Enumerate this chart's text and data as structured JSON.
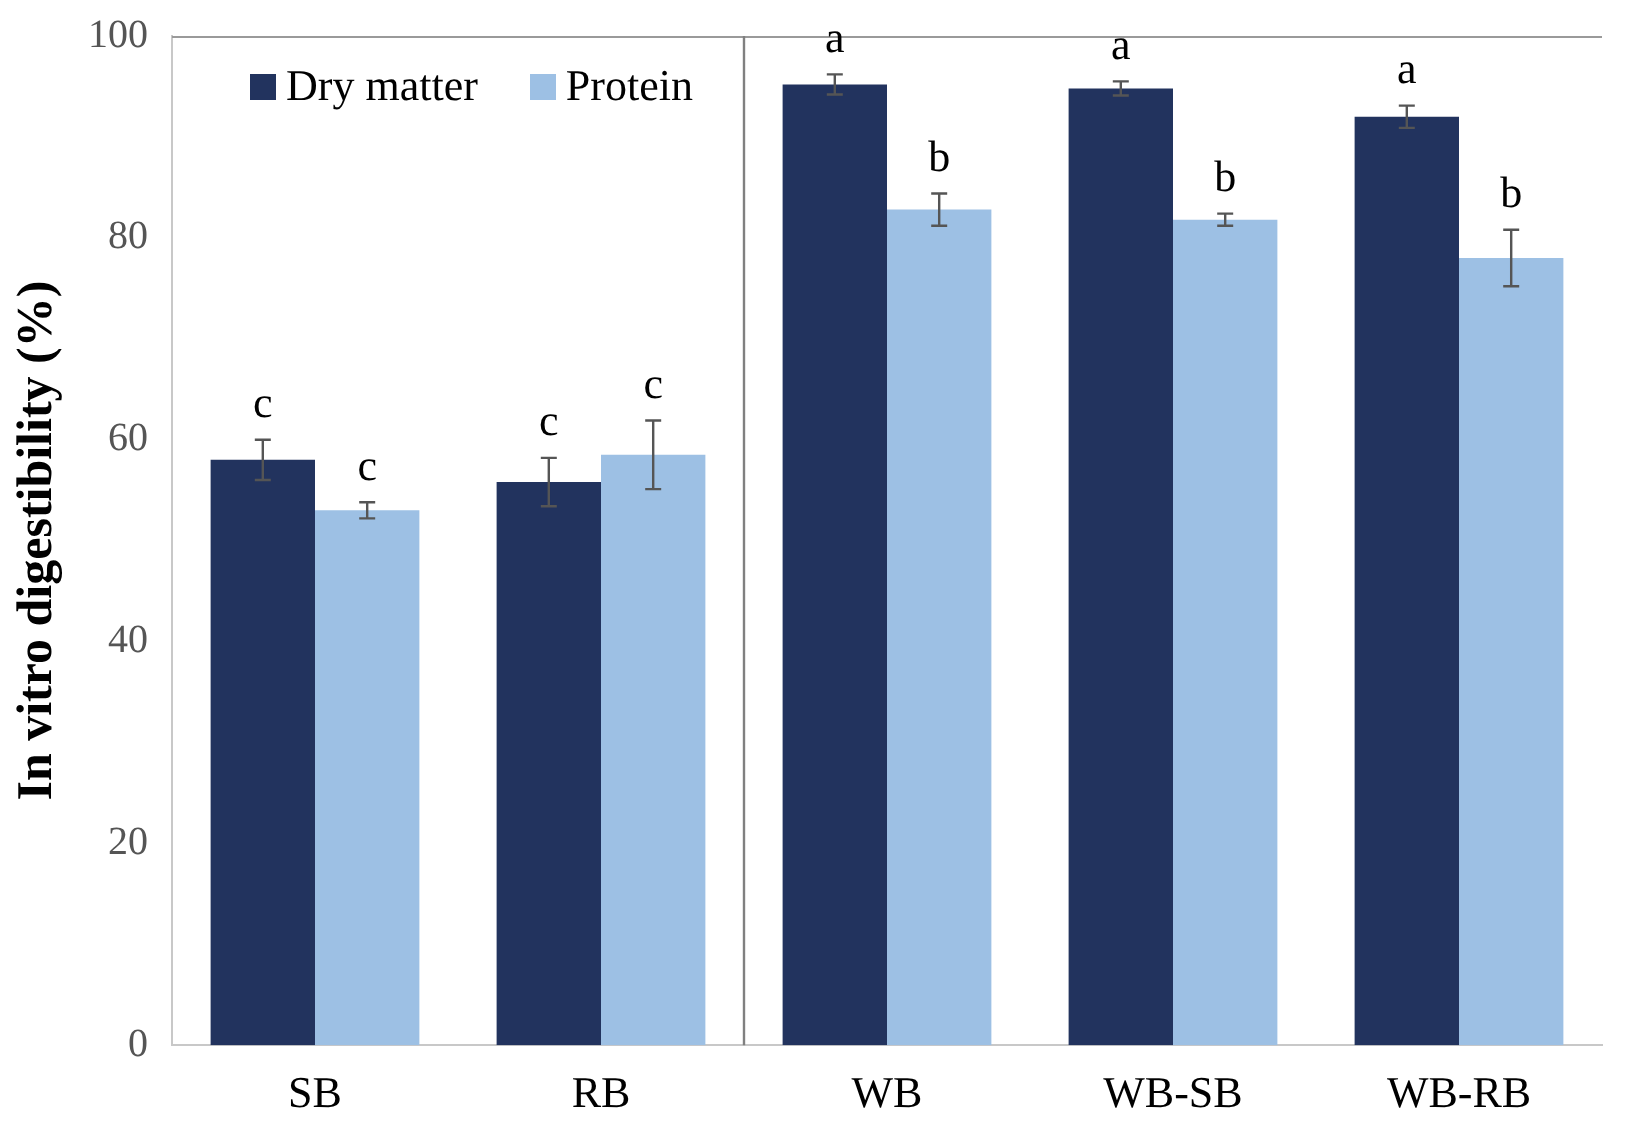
{
  "chart_data": {
    "type": "bar",
    "ylabel": "In vitro digestibility (%)",
    "categories": [
      "SB",
      "RB",
      "WB",
      "WB-SB",
      "WB-RB"
    ],
    "series": [
      {
        "name": "Dry matter",
        "color": "#22335e",
        "values": [
          58,
          55.8,
          95.2,
          94.8,
          92
        ],
        "errors": [
          2,
          2.4,
          1,
          0.7,
          1.1
        ]
      },
      {
        "name": "Protein",
        "color": "#9dc0e4",
        "values": [
          53,
          58.5,
          82.8,
          81.8,
          78
        ],
        "errors": [
          0.8,
          3.4,
          1.6,
          0.6,
          2.8
        ]
      }
    ],
    "ylim": [
      0,
      100
    ],
    "yticks": [
      0,
      20,
      40,
      60,
      80,
      100
    ],
    "grid": false,
    "legend": "top left",
    "annotations": [
      "c",
      "c",
      "c",
      "c",
      "a",
      "b",
      "a",
      "b",
      "a",
      "b"
    ]
  }
}
